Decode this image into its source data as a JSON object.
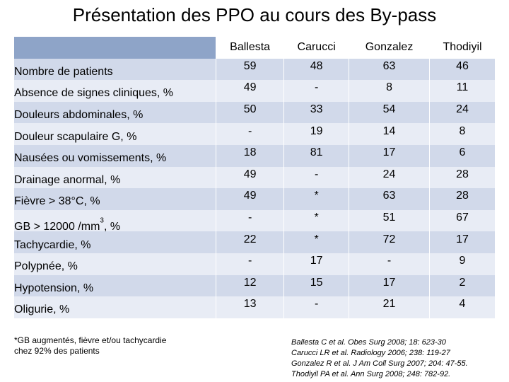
{
  "title": "Présentation des PPO au cours des By-pass",
  "table": {
    "columns": [
      "Ballesta",
      "Carucci",
      "Gonzalez",
      "Thodiyil"
    ],
    "rows": [
      {
        "label": "Nombre de patients",
        "values": [
          "59",
          "48",
          "63",
          "46"
        ]
      },
      {
        "label": "Absence de signes cliniques, %",
        "values": [
          "49",
          "-",
          "8",
          "11"
        ]
      },
      {
        "label": "Douleurs abdominales, %",
        "values": [
          "50",
          "33",
          "54",
          "24"
        ]
      },
      {
        "label": "Douleur scapulaire G, %",
        "values": [
          "-",
          "19",
          "14",
          "8"
        ]
      },
      {
        "label": "Nausées ou vomissements, %",
        "values": [
          "18",
          "81",
          "17",
          "6"
        ]
      },
      {
        "label": "Drainage anormal, %",
        "values": [
          "49",
          "-",
          "24",
          "28"
        ]
      },
      {
        "label": "Fièvre > 38°C, %",
        "values": [
          "49",
          "*",
          "63",
          "28"
        ]
      },
      {
        "label_main": "GB > 12000 /mm",
        "label_sup": "3",
        "label_tail": ", %",
        "values": [
          "-",
          "*",
          "51",
          "67"
        ]
      },
      {
        "label": "Tachycardie, %",
        "values": [
          "22",
          "*",
          "72",
          "17"
        ]
      },
      {
        "label": "Polypnée, %",
        "values": [
          "-",
          "17",
          "-",
          "9"
        ]
      },
      {
        "label": "Hypotension, %",
        "values": [
          "12",
          "15",
          "17",
          "2"
        ]
      },
      {
        "label": "Oligurie, %",
        "values": [
          "13",
          "-",
          "21",
          "4"
        ]
      }
    ]
  },
  "footnote": {
    "line1": "*GB augmentés, fièvre et/ou tachycardie",
    "line2": "chez 92% des patients"
  },
  "references": [
    "Ballesta C et al. Obes Surg 2008; 18: 623-30",
    "Carucci LR et al. Radiology 2006; 238: 119-27",
    "Gonzalez R et al. J Am Coll Surg 2007; 204: 47-55.",
    "Thodiyil PA et al. Ann Surg 2008; 248: 782-92."
  ]
}
